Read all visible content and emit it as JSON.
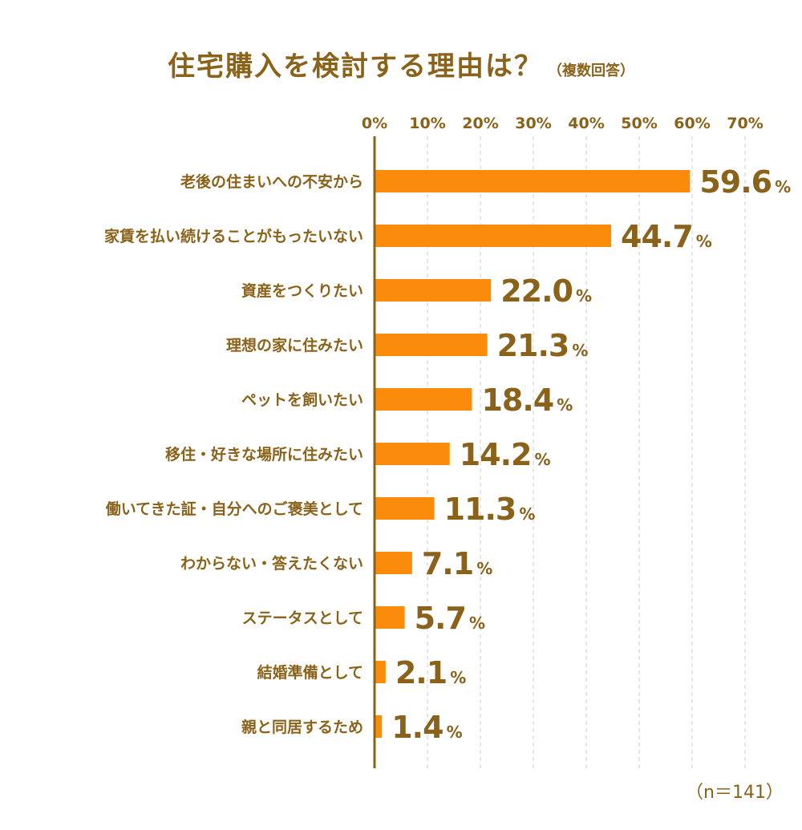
{
  "title": "住宅購入を検討する理由は？",
  "subtitle": "（複数回答）",
  "note": "（n＝141）",
  "colors": {
    "bar": "#fb8c0b",
    "text": "#8a6219",
    "grid": "#cfcfcf",
    "axis": "#8a6219"
  },
  "chart_data": {
    "type": "bar",
    "orientation": "horizontal",
    "categories": [
      "老後の住まいへの不安から",
      "家賃を払い続けることがもったいない",
      "資産をつくりたい",
      "理想の家に住みたい",
      "ペットを飼いたい",
      "移住・好きな場所に住みたい",
      "働いてきた証・自分へのご褒美として",
      "わからない・答えたくない",
      "ステータスとして",
      "結婚準備として",
      "親と同居するため"
    ],
    "values": [
      59.6,
      44.7,
      22.0,
      21.3,
      18.4,
      14.2,
      11.3,
      7.1,
      5.7,
      2.1,
      1.4
    ],
    "value_labels": [
      "59.6",
      "44.7",
      "22.0",
      "21.3",
      "18.4",
      "14.2",
      "11.3",
      "7.1",
      "5.7",
      "2.1",
      "1.4"
    ],
    "unit": "%",
    "xlim": [
      0,
      70
    ],
    "ticks": [
      "0%",
      "10%",
      "20%",
      "30%",
      "40%",
      "50%",
      "60%",
      "70%"
    ],
    "grid": true,
    "axis_position": "top"
  }
}
